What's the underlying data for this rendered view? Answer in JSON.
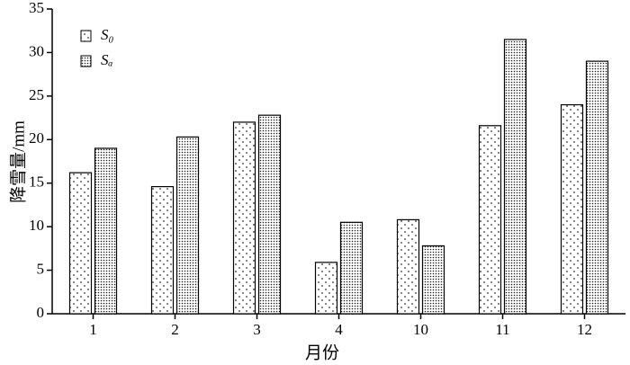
{
  "chart_data": {
    "type": "bar",
    "xlabel": "月份",
    "ylabel": "降雪量/mm",
    "categories": [
      "1",
      "2",
      "3",
      "4",
      "10",
      "11",
      "12"
    ],
    "series": [
      {
        "name": "S₀",
        "values": [
          16.2,
          14.6,
          22.0,
          5.9,
          10.8,
          21.6,
          24.0
        ]
      },
      {
        "name": "Sₐ",
        "values": [
          19.0,
          20.3,
          22.8,
          10.5,
          7.8,
          31.5,
          29.0
        ]
      }
    ],
    "ylim": [
      0,
      35
    ],
    "yticks": [
      0,
      5,
      10,
      15,
      20,
      25,
      30,
      35
    ],
    "legend": "upper left"
  }
}
